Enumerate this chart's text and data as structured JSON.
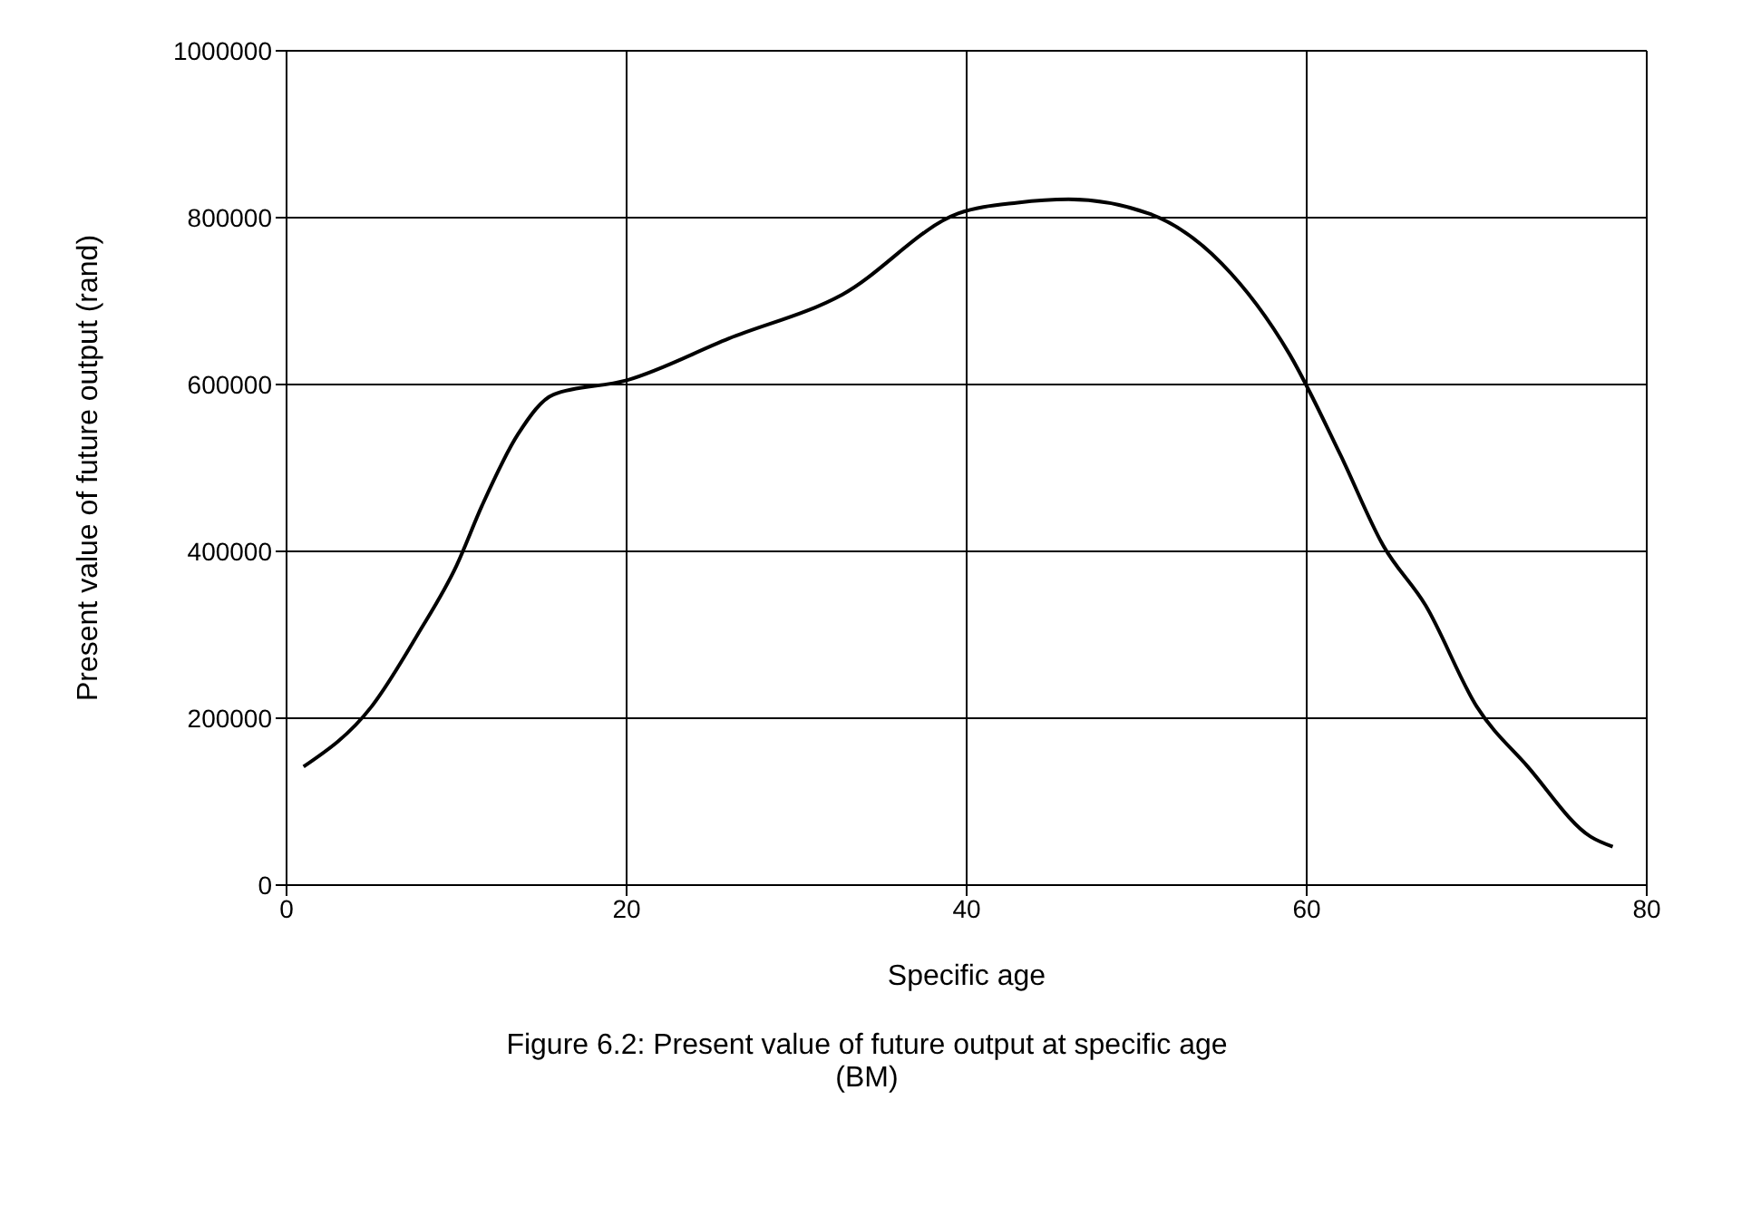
{
  "chart_data": {
    "type": "line",
    "xlabel": "Specific age",
    "ylabel": "Present value of future output (rand)",
    "annotations": [
      "Figure 6.2: Present value of future output at specific age (BM)"
    ],
    "xlim": [
      0,
      80
    ],
    "xticks": [
      0,
      20,
      40,
      60,
      80
    ],
    "ylim": [
      0,
      1000000
    ],
    "yticks": [
      0,
      200000,
      400000,
      600000,
      800000,
      1000000
    ],
    "grid": true,
    "marker": "none",
    "line_style": "solid",
    "series": [
      {
        "color": "#000000",
        "x": [
          1,
          5,
          7.7,
          10,
          11.5,
          13.6,
          15.7,
          20,
          26,
          32.7,
          39.5,
          43,
          46,
          50.7,
          55,
          59,
          62,
          64.5,
          67,
          70,
          73,
          76.7,
          78
        ],
        "values": [
          142000,
          214000,
          300000,
          383000,
          455000,
          540000,
          588000,
          605000,
          655000,
          708000,
          805000,
          818000,
          822000,
          805000,
          745000,
          636000,
          515000,
          407000,
          335000,
          214000,
          142000,
          58000,
          46000
        ]
      }
    ]
  }
}
